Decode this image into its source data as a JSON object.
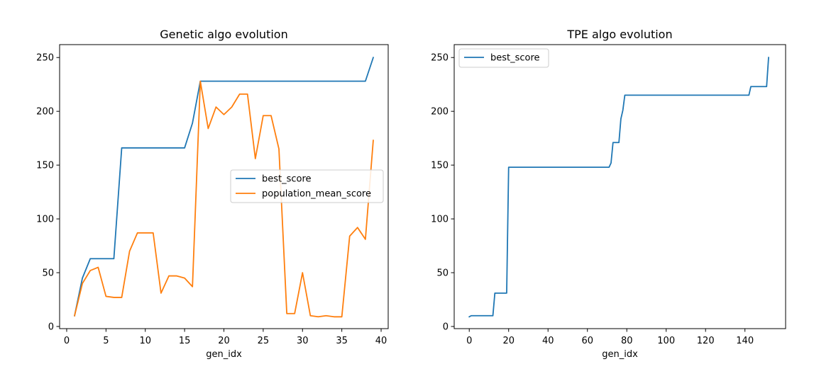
{
  "chart_data": [
    {
      "type": "line",
      "title": "Genetic algo evolution",
      "xlabel": "gen_idx",
      "ylabel": "",
      "xlim": [
        -0.9,
        40.9
      ],
      "ylim": [
        -2,
        262
      ],
      "xticks": [
        0,
        5,
        10,
        15,
        20,
        25,
        30,
        35,
        40
      ],
      "yticks": [
        0,
        50,
        100,
        150,
        200,
        250
      ],
      "grid": false,
      "legend_position": "center-right",
      "series": [
        {
          "name": "best_score",
          "color": "#1f77b4",
          "x": [
            1,
            2,
            3,
            4,
            5,
            6,
            7,
            8,
            9,
            10,
            11,
            12,
            13,
            14,
            15,
            16,
            17,
            18,
            19,
            20,
            21,
            22,
            23,
            24,
            25,
            26,
            27,
            28,
            29,
            30,
            31,
            32,
            33,
            34,
            35,
            36,
            37,
            38,
            39
          ],
          "y": [
            10,
            45,
            63,
            63,
            63,
            63,
            166,
            166,
            166,
            166,
            166,
            166,
            166,
            166,
            166,
            189,
            228,
            228,
            228,
            228,
            228,
            228,
            228,
            228,
            228,
            228,
            228,
            228,
            228,
            228,
            228,
            228,
            228,
            228,
            228,
            228,
            228,
            228,
            250
          ]
        },
        {
          "name": "population_mean_score",
          "color": "#ff7f0e",
          "x": [
            1,
            2,
            3,
            4,
            5,
            6,
            7,
            8,
            9,
            10,
            11,
            12,
            13,
            14,
            15,
            16,
            17,
            18,
            19,
            20,
            21,
            22,
            23,
            24,
            25,
            26,
            27,
            28,
            29,
            30,
            31,
            32,
            33,
            34,
            35,
            36,
            37,
            38,
            39
          ],
          "y": [
            10,
            40,
            52,
            55,
            28,
            27,
            27,
            70,
            87,
            87,
            87,
            31,
            47,
            47,
            45,
            37,
            228,
            184,
            204,
            197,
            204,
            216,
            216,
            156,
            196,
            196,
            165,
            12,
            12,
            50,
            10,
            9,
            10,
            9,
            9,
            84,
            92,
            81,
            173
          ]
        }
      ]
    },
    {
      "type": "line",
      "title": "TPE algo evolution",
      "xlabel": "gen_idx",
      "ylabel": "",
      "xlim": [
        -7.65,
        160.65
      ],
      "ylim": [
        -2,
        262
      ],
      "xticks": [
        0,
        20,
        40,
        60,
        80,
        100,
        120,
        140
      ],
      "yticks": [
        0,
        50,
        100,
        150,
        200,
        250
      ],
      "grid": false,
      "legend_position": "upper-left",
      "series": [
        {
          "name": "best_score",
          "color": "#1f77b4",
          "x": [
            0,
            1,
            12,
            13,
            19,
            20,
            71,
            72,
            73,
            76,
            77,
            78,
            79,
            142,
            143,
            151,
            152
          ],
          "y": [
            9,
            10,
            10,
            31,
            31,
            148,
            148,
            152,
            171,
            171,
            193,
            201,
            215,
            215,
            223,
            223,
            250
          ]
        }
      ]
    }
  ]
}
